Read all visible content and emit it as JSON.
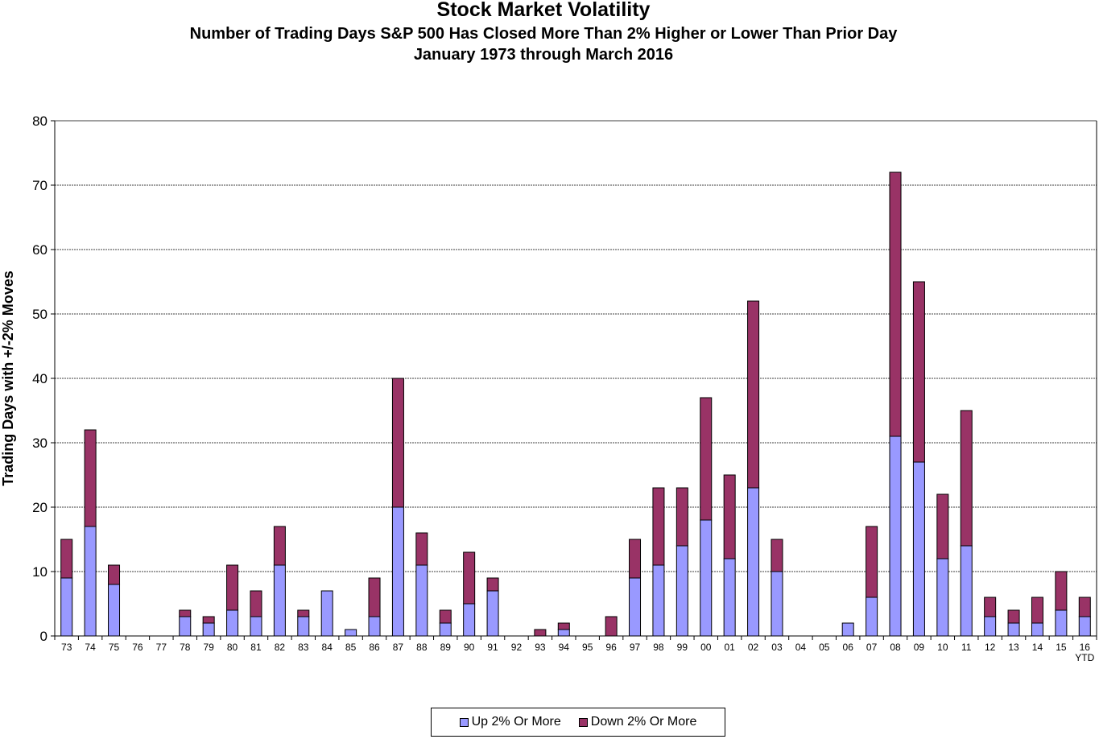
{
  "chart_data": {
    "type": "bar",
    "stacked": true,
    "title": "Stock Market Volatility",
    "subtitle": "Number of Trading Days S&P 500 Has Closed More Than 2% Higher or Lower Than Prior Day",
    "subtitle2": "January 1973 through March 2016",
    "xlabel": "",
    "ylabel": "Trading Days with +/-2% Moves",
    "ylim": [
      0,
      80
    ],
    "yticks": [
      0,
      10,
      20,
      30,
      40,
      50,
      60,
      70,
      80
    ],
    "grid": true,
    "legend_position": "bottom",
    "categories": [
      "73",
      "74",
      "75",
      "76",
      "77",
      "78",
      "79",
      "80",
      "81",
      "82",
      "83",
      "84",
      "85",
      "86",
      "87",
      "88",
      "89",
      "90",
      "91",
      "92",
      "93",
      "94",
      "95",
      "96",
      "97",
      "98",
      "99",
      "00",
      "01",
      "02",
      "03",
      "04",
      "05",
      "06",
      "07",
      "08",
      "09",
      "10",
      "11",
      "12",
      "13",
      "14",
      "15",
      "16"
    ],
    "last_category_note": "YTD",
    "series": [
      {
        "name": "Up 2% Or More",
        "color": "#9999ff",
        "values": [
          9,
          17,
          8,
          0,
          0,
          3,
          2,
          4,
          3,
          11,
          3,
          7,
          1,
          3,
          20,
          11,
          2,
          5,
          7,
          0,
          0,
          1,
          0,
          0,
          9,
          11,
          14,
          18,
          12,
          23,
          10,
          0,
          0,
          2,
          6,
          31,
          27,
          12,
          14,
          3,
          2,
          2,
          4,
          3
        ]
      },
      {
        "name": "Down 2% Or More",
        "color": "#993366",
        "values": [
          6,
          15,
          3,
          0,
          0,
          1,
          1,
          7,
          4,
          6,
          1,
          0,
          0,
          6,
          20,
          5,
          2,
          8,
          2,
          0,
          1,
          1,
          0,
          3,
          6,
          12,
          9,
          19,
          13,
          29,
          5,
          0,
          0,
          0,
          11,
          41,
          28,
          10,
          21,
          3,
          2,
          4,
          6,
          3
        ]
      }
    ]
  }
}
